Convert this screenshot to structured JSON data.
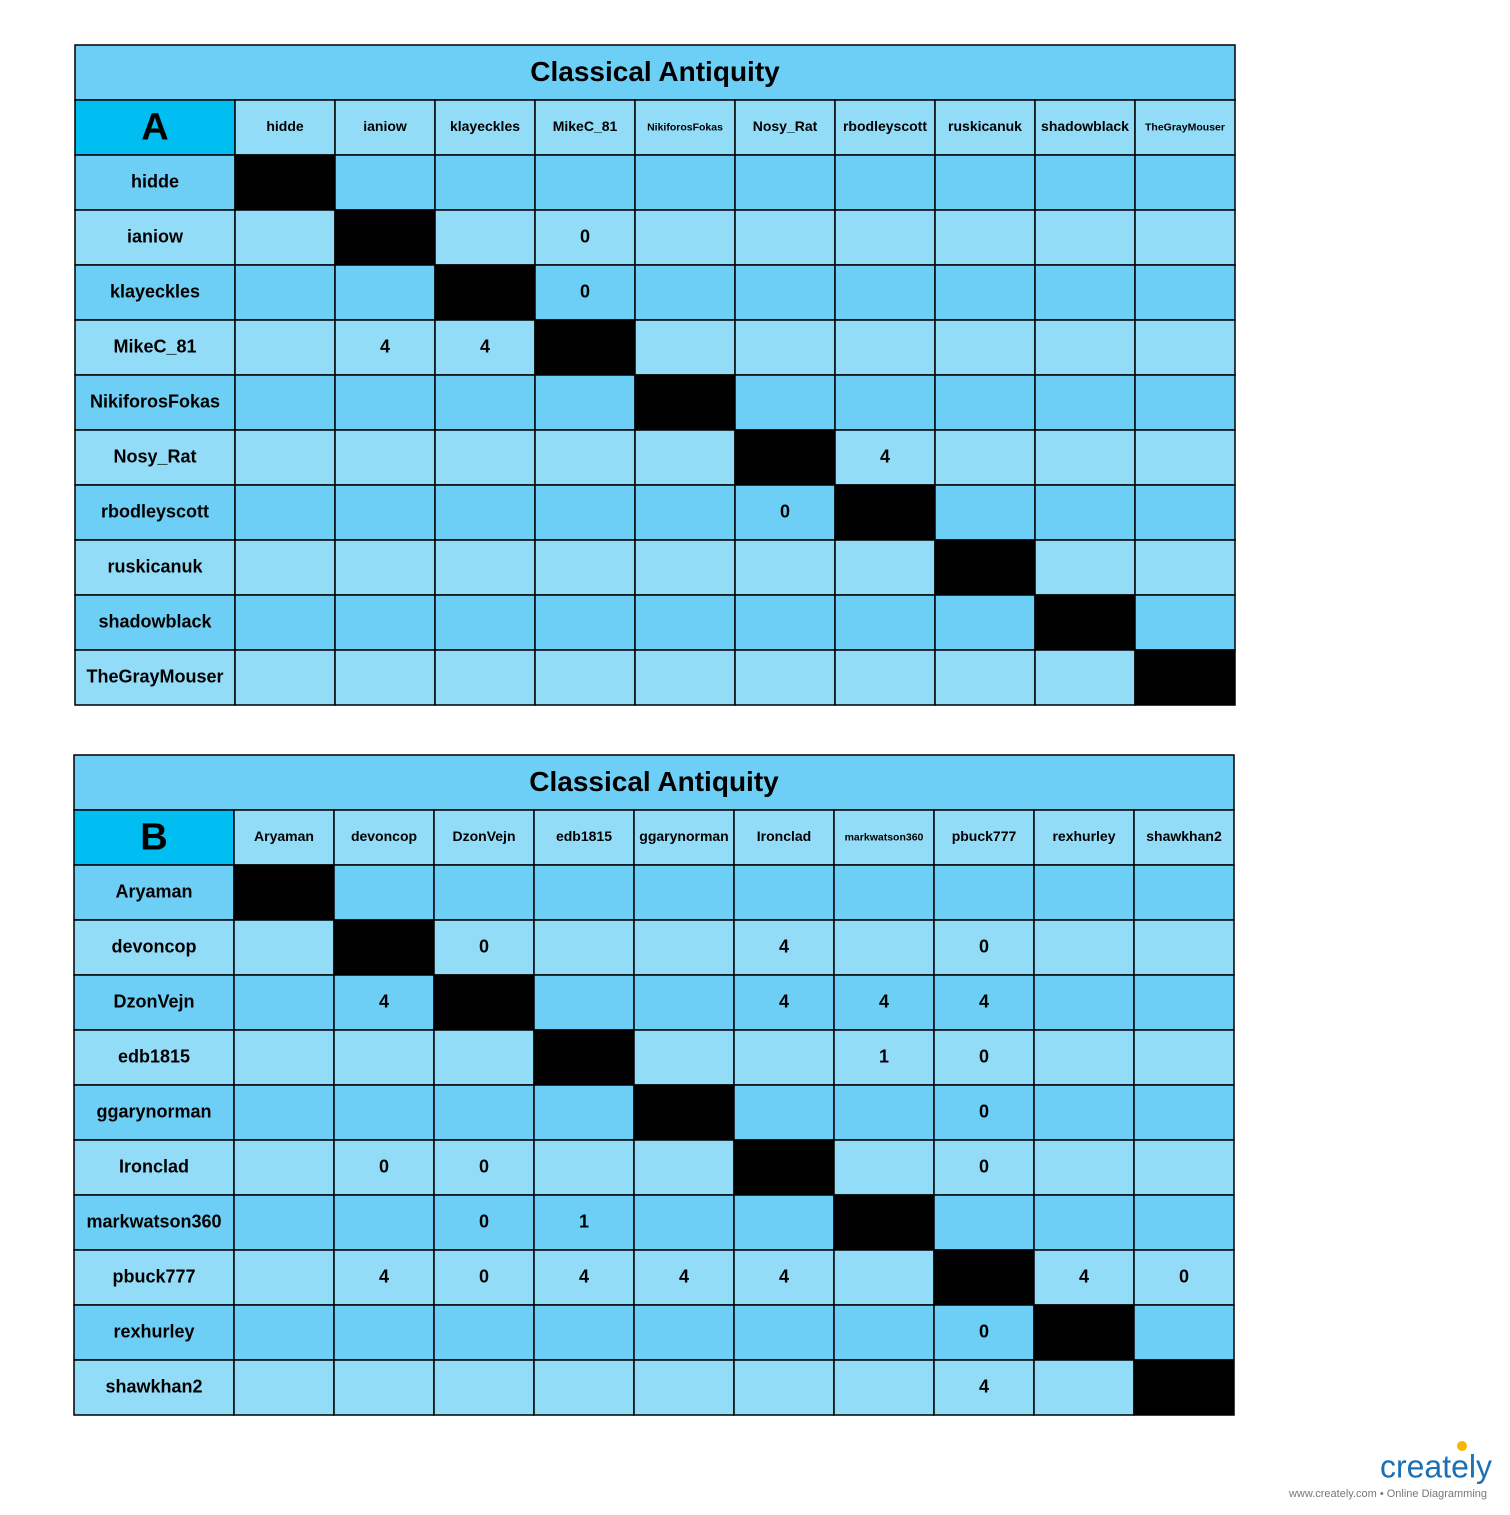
{
  "tables": [
    {
      "title": "Classical Antiquity",
      "label": "A",
      "columns": [
        "hidde",
        "ianiow",
        "klayeckles",
        "MikeC_81",
        "NikiforosFokas",
        "Nosy_Rat",
        "rbodleyscott",
        "ruskicanuk",
        "shadowblack",
        "TheGrayMouser"
      ],
      "rows": [
        {
          "label": "hidde",
          "cells": [
            null,
            null,
            null,
            null,
            null,
            null,
            null,
            null,
            null,
            null
          ]
        },
        {
          "label": "ianiow",
          "cells": [
            null,
            null,
            null,
            0,
            null,
            null,
            null,
            null,
            null,
            null
          ]
        },
        {
          "label": "klayeckles",
          "cells": [
            null,
            null,
            null,
            0,
            null,
            null,
            null,
            null,
            null,
            null
          ]
        },
        {
          "label": "MikeC_81",
          "cells": [
            null,
            4,
            4,
            null,
            null,
            null,
            null,
            null,
            null,
            null
          ]
        },
        {
          "label": "NikiforosFokas",
          "cells": [
            null,
            null,
            null,
            null,
            null,
            null,
            null,
            null,
            null,
            null
          ]
        },
        {
          "label": "Nosy_Rat",
          "cells": [
            null,
            null,
            null,
            null,
            null,
            null,
            4,
            null,
            null,
            null
          ]
        },
        {
          "label": "rbodleyscott",
          "cells": [
            null,
            null,
            null,
            null,
            null,
            0,
            null,
            null,
            null,
            null
          ]
        },
        {
          "label": "ruskicanuk",
          "cells": [
            null,
            null,
            null,
            null,
            null,
            null,
            null,
            null,
            null,
            null
          ]
        },
        {
          "label": "shadowblack",
          "cells": [
            null,
            null,
            null,
            null,
            null,
            null,
            null,
            null,
            null,
            null
          ]
        },
        {
          "label": "TheGrayMouser",
          "cells": [
            null,
            null,
            null,
            null,
            null,
            null,
            null,
            null,
            null,
            null
          ]
        }
      ]
    },
    {
      "title": "Classical Antiquity",
      "label": "B",
      "columns": [
        "Aryaman",
        "devoncop",
        "DzonVejn",
        "edb1815",
        "ggarynorman",
        "Ironclad",
        "markwatson360",
        "pbuck777",
        "rexhurley",
        "shawkhan2"
      ],
      "rows": [
        {
          "label": "Aryaman",
          "cells": [
            null,
            null,
            null,
            null,
            null,
            null,
            null,
            null,
            null,
            null
          ]
        },
        {
          "label": "devoncop",
          "cells": [
            null,
            null,
            0,
            null,
            null,
            4,
            null,
            0,
            null,
            null
          ]
        },
        {
          "label": "DzonVejn",
          "cells": [
            null,
            4,
            null,
            null,
            null,
            4,
            4,
            4,
            null,
            null
          ]
        },
        {
          "label": "edb1815",
          "cells": [
            null,
            null,
            null,
            null,
            null,
            null,
            1,
            0,
            null,
            null
          ]
        },
        {
          "label": "ggarynorman",
          "cells": [
            null,
            null,
            null,
            null,
            null,
            null,
            null,
            0,
            null,
            null
          ]
        },
        {
          "label": "Ironclad",
          "cells": [
            null,
            0,
            0,
            null,
            null,
            null,
            null,
            0,
            null,
            null
          ]
        },
        {
          "label": "markwatson360",
          "cells": [
            null,
            null,
            0,
            1,
            null,
            null,
            null,
            null,
            null,
            null
          ]
        },
        {
          "label": "pbuck777",
          "cells": [
            null,
            4,
            0,
            4,
            4,
            4,
            null,
            null,
            4,
            0
          ]
        },
        {
          "label": "rexhurley",
          "cells": [
            null,
            null,
            null,
            null,
            null,
            null,
            null,
            0,
            null,
            null
          ]
        },
        {
          "label": "shawkhan2",
          "cells": [
            null,
            null,
            null,
            null,
            null,
            null,
            null,
            4,
            null,
            null
          ]
        }
      ]
    }
  ],
  "footer": {
    "logo": "creately",
    "tagline": "www.creately.com • Online Diagramming"
  }
}
